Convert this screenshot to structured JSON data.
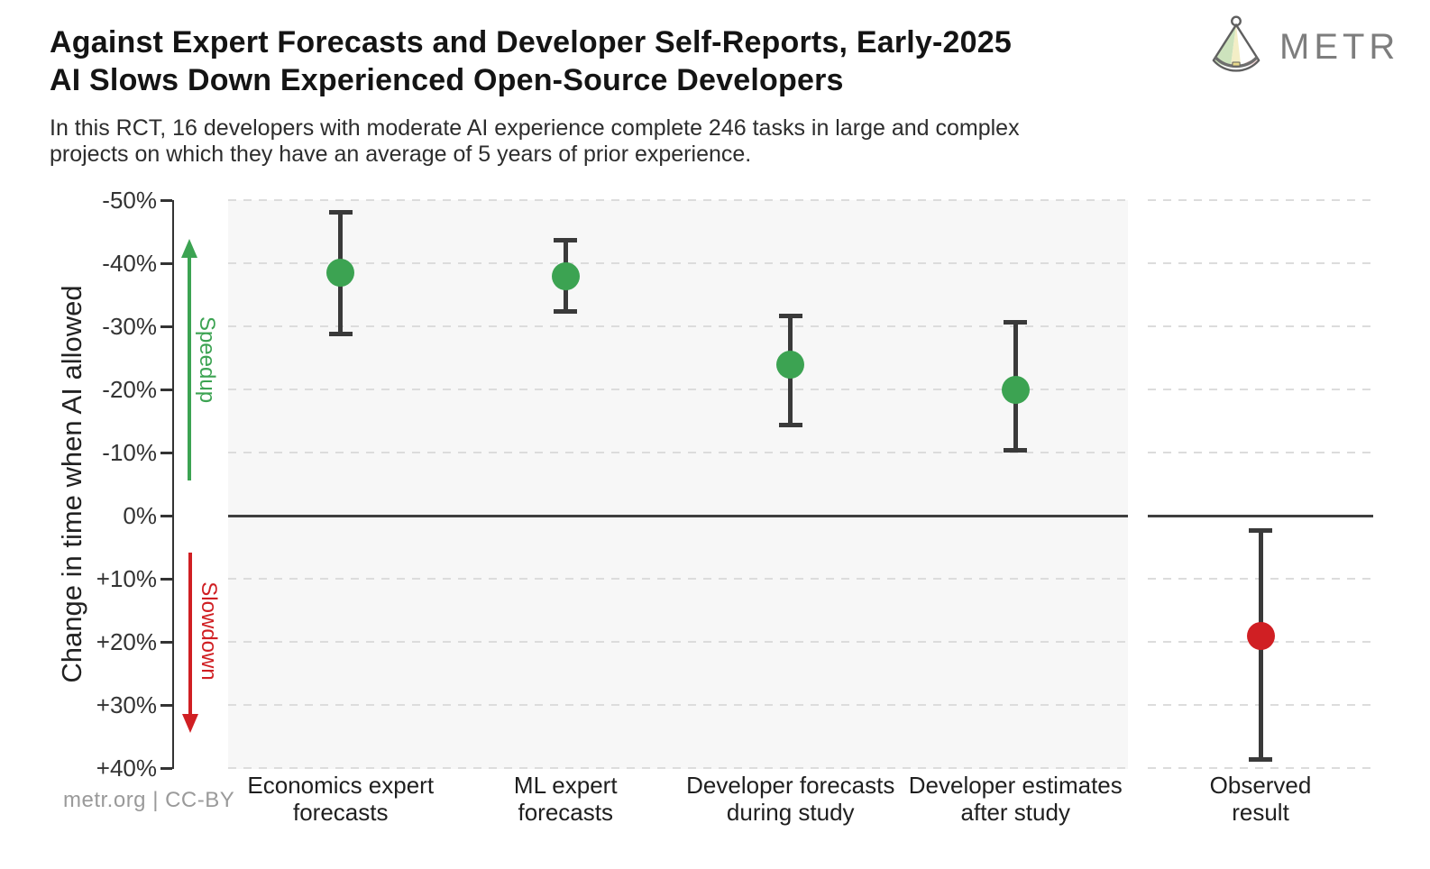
{
  "header": {
    "title_line1": "Against Expert Forecasts and Developer Self-Reports, Early-2025",
    "title_line2": "AI Slows Down Experienced Open-Source Developers",
    "subtitle_line1": "In this RCT, 16 developers with moderate AI experience complete 246 tasks in large and complex",
    "subtitle_line2": "projects on which they have an average of 5 years of prior experience.",
    "logo_text": "METR"
  },
  "footer": {
    "credit": "metr.org  |  CC-BY"
  },
  "colors": {
    "green": "#3ca352",
    "red": "#d01f23",
    "error_bar": "#3a3a3a",
    "grid": "#dcdcdc",
    "zero_line": "#3f3f3f",
    "panel_bg": "#f7f7f7",
    "axis": "#333333",
    "footer_text": "#9a9a9a",
    "logo_gray": "#7d7d7d"
  },
  "chart_data": {
    "type": "scatter",
    "title": "Against Expert Forecasts and Developer Self-Reports, Early-2025 AI Slows Down Experienced Open-Source Developers",
    "ylabel": "Change in time when AI allowed",
    "xlabel": "",
    "ylim": [
      -50,
      40
    ],
    "y_axis_inverted": true,
    "grid": "dashed horizontal gridlines every 10%, solid dark line at 0%",
    "legend_position": "none",
    "y_ticks": [
      {
        "value": -50,
        "label": "-50%"
      },
      {
        "value": -40,
        "label": "-40%"
      },
      {
        "value": -30,
        "label": "-30%"
      },
      {
        "value": -20,
        "label": "-20%"
      },
      {
        "value": -10,
        "label": "-10%"
      },
      {
        "value": 0,
        "label": "0%"
      },
      {
        "value": 10,
        "label": "+10%"
      },
      {
        "value": 20,
        "label": "+20%"
      },
      {
        "value": 30,
        "label": "+30%"
      },
      {
        "value": 40,
        "label": "+40%"
      }
    ],
    "annotations": [
      {
        "text": "Speedup",
        "color_key": "green",
        "direction": "up",
        "value_span": [
          -44,
          -5.5
        ]
      },
      {
        "text": "Slowdown",
        "color_key": "red",
        "direction": "down",
        "value_span": [
          5.9,
          34.5
        ]
      }
    ],
    "series": [
      {
        "label_line1": "Economics expert",
        "label_line2": "forecasts",
        "value": -38.5,
        "ci": [
          -48.5,
          -28.5
        ],
        "color_key": "green",
        "panel": "main"
      },
      {
        "label_line1": "ML expert",
        "label_line2": "forecasts",
        "value": -38.0,
        "ci": [
          -44.0,
          -32.0
        ],
        "color_key": "green",
        "panel": "main"
      },
      {
        "label_line1": "Developer forecasts",
        "label_line2": "during study",
        "value": -24.0,
        "ci": [
          -32.0,
          -14.0
        ],
        "color_key": "green",
        "panel": "main"
      },
      {
        "label_line1": "Developer estimates",
        "label_line2": "after study",
        "value": -20.0,
        "ci": [
          -31.0,
          -10.0
        ],
        "color_key": "green",
        "panel": "main"
      },
      {
        "label_line1": "Observed",
        "label_line2": "result",
        "value": 19.0,
        "ci": [
          2.0,
          39.0
        ],
        "color_key": "red",
        "panel": "observed"
      }
    ]
  }
}
